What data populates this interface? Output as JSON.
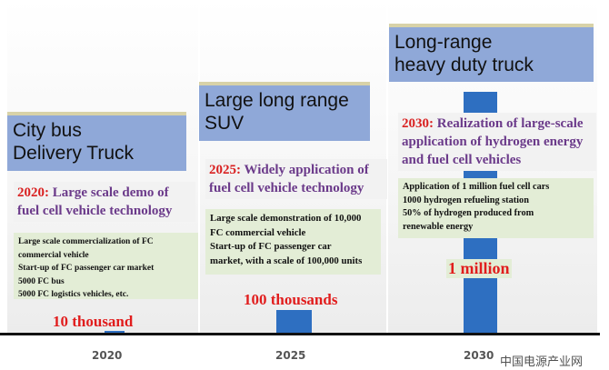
{
  "stages": [
    {
      "year": "2020",
      "vehicle_lines": [
        "City bus",
        "Delivery Truck"
      ],
      "milestone_year": "2020:",
      "milestone_text": " Large scale demo of fuel cell vehicle technology",
      "details": [
        "Large scale commercialization of FC",
        "commercial vehicle",
        "Start-up of FC passenger car market",
        "5000 FC bus",
        "5000 FC logistics vehicles, etc."
      ],
      "quantity_label": "10 thousand"
    },
    {
      "year": "2025",
      "vehicle_lines": [
        "Large long range",
        "SUV"
      ],
      "milestone_year": "2025:",
      "milestone_text": " Widely application of fuel cell vehicle technology",
      "details": [
        "Large scale demonstration of 10,000",
        "FC commercial vehicle",
        "Start-up of FC passenger car",
        "market, with a scale of 100,000 units"
      ],
      "quantity_label": "100 thousands"
    },
    {
      "year": "2030",
      "vehicle_lines": [
        "Long-range",
        "heavy duty truck"
      ],
      "milestone_year": "2030:",
      "milestone_text": " Realization of large-scale application of hydrogen energy and fuel cell vehicles",
      "details": [
        "Application of 1 million fuel cell cars",
        "1000 hydrogen refueling station",
        "50% of hydrogen produced from",
        "renewable energy"
      ],
      "quantity_label": "1 million"
    }
  ],
  "watermark": "中国电源产业网",
  "colors": {
    "vehicle_box": "#8fa8d8",
    "bar": "#2e6fc1",
    "milestone_text": "#6b3a8a",
    "year_highlight": "#d92020",
    "quantity_text": "#e11d1d",
    "info_box": "#e3edd6"
  }
}
